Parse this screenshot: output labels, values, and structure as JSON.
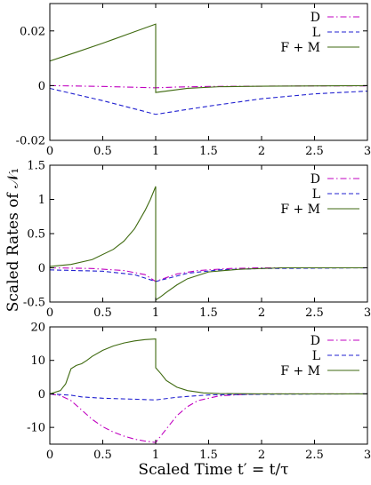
{
  "figure": {
    "ylabel": "Scaled Rates of 𝒩₁",
    "xlabel": "Scaled Time t′ = t/τ"
  },
  "chart_data": [
    {
      "type": "line",
      "title": "",
      "xlim": [
        0,
        3
      ],
      "ylim": [
        -0.02,
        0.03
      ],
      "xticks": [
        0,
        0.5,
        1,
        1.5,
        2,
        2.5,
        3
      ],
      "xtick_labels": [
        "0",
        "0.5",
        "1",
        "1.5",
        "2",
        "2.5",
        "3"
      ],
      "yticks": [
        -0.02,
        0,
        0.02
      ],
      "ytick_labels": [
        "-0.02",
        "0",
        "0.02"
      ],
      "legend": "top-right",
      "series": [
        {
          "name": "D",
          "color": "#c000c0",
          "dash": "dash-dot",
          "x": [
            0,
            0.5,
            1,
            1.2,
            1.5,
            2,
            2.5,
            3
          ],
          "y": [
            0,
            -0.0003,
            -0.0008,
            -0.0005,
            -0.0003,
            -0.0002,
            -0.0001,
            -0.0001
          ]
        },
        {
          "name": "L",
          "color": "#2020d0",
          "dash": "dashed",
          "x": [
            0,
            0.5,
            1,
            1.5,
            2,
            2.5,
            3
          ],
          "y": [
            -0.001,
            -0.0055,
            -0.0105,
            -0.0075,
            -0.0048,
            -0.003,
            -0.002
          ]
        },
        {
          "name": "F + M",
          "color": "#3f6a10",
          "dash": "solid",
          "x": [
            0,
            0.25,
            0.5,
            0.75,
            1,
            1,
            1.3,
            1.6,
            2,
            3
          ],
          "y": [
            0.009,
            0.0122,
            0.0155,
            0.019,
            0.0225,
            -0.0025,
            -0.001,
            -0.0004,
            -0.0002,
            0
          ]
        }
      ]
    },
    {
      "type": "line",
      "title": "",
      "xlim": [
        0,
        3
      ],
      "ylim": [
        -0.5,
        1.5
      ],
      "xticks": [
        0,
        0.5,
        1,
        1.5,
        2,
        2.5,
        3
      ],
      "xtick_labels": [
        "0",
        "0.5",
        "1",
        "1.5",
        "2",
        "2.5",
        "3"
      ],
      "yticks": [
        -0.5,
        0,
        0.5,
        1,
        1.5
      ],
      "ytick_labels": [
        "-0.5",
        "0",
        "0.5",
        "1",
        "1.5"
      ],
      "legend": "top-right",
      "series": [
        {
          "name": "D",
          "color": "#c000c0",
          "dash": "dash-dot",
          "x": [
            0,
            0.4,
            0.7,
            0.9,
            1,
            1.05,
            1.2,
            1.4,
            1.7,
            2,
            3
          ],
          "y": [
            0,
            -0.01,
            -0.04,
            -0.1,
            -0.2,
            -0.17,
            -0.09,
            -0.04,
            -0.01,
            0,
            0
          ]
        },
        {
          "name": "L",
          "color": "#2020d0",
          "dash": "dashed",
          "x": [
            0,
            0.5,
            0.8,
            1,
            1.1,
            1.3,
            1.6,
            2,
            3
          ],
          "y": [
            -0.03,
            -0.05,
            -0.1,
            -0.2,
            -0.16,
            -0.08,
            -0.03,
            -0.01,
            0
          ]
        },
        {
          "name": "F + M",
          "color": "#3f6a10",
          "dash": "solid",
          "x": [
            0,
            0.2,
            0.4,
            0.6,
            0.7,
            0.8,
            0.9,
            0.95,
            1,
            1,
            1.05,
            1.1,
            1.2,
            1.3,
            1.5,
            1.8,
            2.2,
            3
          ],
          "y": [
            0.02,
            0.05,
            0.12,
            0.27,
            0.39,
            0.57,
            0.84,
            1.0,
            1.19,
            -0.47,
            -0.42,
            -0.36,
            -0.25,
            -0.16,
            -0.06,
            -0.02,
            0,
            0
          ]
        }
      ]
    },
    {
      "type": "line",
      "title": "",
      "xlim": [
        0,
        3
      ],
      "ylim": [
        -15,
        20
      ],
      "xticks": [
        0,
        0.5,
        1,
        1.5,
        2,
        2.5,
        3
      ],
      "xtick_labels": [
        "0",
        "0.5",
        "1",
        "1.5",
        "2",
        "2.5",
        "3"
      ],
      "yticks": [
        -10,
        0,
        10,
        20
      ],
      "ytick_labels": [
        "-10",
        "0",
        "10",
        "20"
      ],
      "legend": "top-right",
      "series": [
        {
          "name": "D",
          "color": "#c000c0",
          "dash": "dash-dot",
          "x": [
            0,
            0.1,
            0.2,
            0.3,
            0.4,
            0.5,
            0.6,
            0.7,
            0.8,
            0.9,
            1,
            1.1,
            1.2,
            1.3,
            1.4,
            1.6,
            1.8,
            2,
            3
          ],
          "y": [
            0,
            -0.5,
            -2,
            -4.8,
            -7.6,
            -9.8,
            -11.4,
            -12.6,
            -13.5,
            -14.1,
            -14.5,
            -10.5,
            -6.5,
            -3.8,
            -2,
            -0.6,
            -0.2,
            0,
            0
          ]
        },
        {
          "name": "L",
          "color": "#2020d0",
          "dash": "dashed",
          "x": [
            0,
            0.2,
            0.3,
            0.5,
            0.8,
            1,
            1.2,
            1.5,
            2,
            3
          ],
          "y": [
            0,
            -0.4,
            -0.9,
            -1.3,
            -1.6,
            -1.8,
            -1,
            -0.3,
            -0.1,
            0
          ]
        },
        {
          "name": "F + M",
          "color": "#3f6a10",
          "dash": "solid",
          "x": [
            0,
            0.1,
            0.15,
            0.2,
            0.25,
            0.3,
            0.35,
            0.4,
            0.5,
            0.6,
            0.7,
            0.8,
            0.9,
            1,
            1,
            1.05,
            1.1,
            1.2,
            1.3,
            1.45,
            1.6,
            2,
            3
          ],
          "y": [
            0,
            1,
            3,
            7.5,
            8.5,
            9,
            10,
            11.2,
            13,
            14.3,
            15.2,
            15.8,
            16.2,
            16.4,
            7.8,
            6,
            4,
            2,
            1,
            0.3,
            0.1,
            0,
            0
          ]
        }
      ]
    }
  ]
}
